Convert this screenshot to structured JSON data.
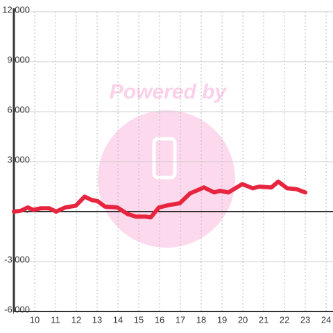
{
  "chart_data": {
    "type": "line",
    "watermark": "Powered by",
    "x": [
      9.0,
      9.33,
      9.67,
      9.93,
      10.3,
      10.7,
      11.03,
      11.47,
      11.97,
      12.4,
      12.73,
      13.03,
      13.37,
      13.97,
      14.47,
      14.87,
      15.3,
      15.57,
      15.97,
      16.47,
      16.97,
      17.47,
      18.13,
      18.63,
      18.9,
      19.3,
      19.97,
      20.47,
      20.8,
      21.37,
      21.7,
      22.13,
      22.57,
      23.0
    ],
    "series": [
      {
        "color": "#e8253f",
        "values": [
          0,
          50,
          250,
          100,
          200,
          200,
          0,
          250,
          350,
          900,
          700,
          625,
          300,
          250,
          -150,
          -300,
          -300,
          -350,
          250,
          400,
          500,
          1100,
          1450,
          1150,
          1250,
          1150,
          1650,
          1400,
          1500,
          1450,
          1800,
          1400,
          1350,
          1150
        ]
      }
    ],
    "xlim": [
      9,
      24.33
    ],
    "xticks": [
      10,
      11,
      12,
      13,
      14,
      15,
      16,
      17,
      18,
      19,
      20,
      21,
      22,
      23,
      24
    ],
    "ylim": [
      -6000,
      12000
    ],
    "yticks": [
      {
        "value": -6000,
        "label": "-6,000"
      },
      {
        "value": -3000,
        "label": "-3,000"
      },
      0,
      {
        "value": 3000,
        "label": "3,000"
      },
      {
        "value": 6000,
        "label": "6,000"
      },
      {
        "value": 9000,
        "label": "9,000"
      },
      {
        "value": 12000,
        "label": "12,000"
      }
    ],
    "grid": true
  }
}
